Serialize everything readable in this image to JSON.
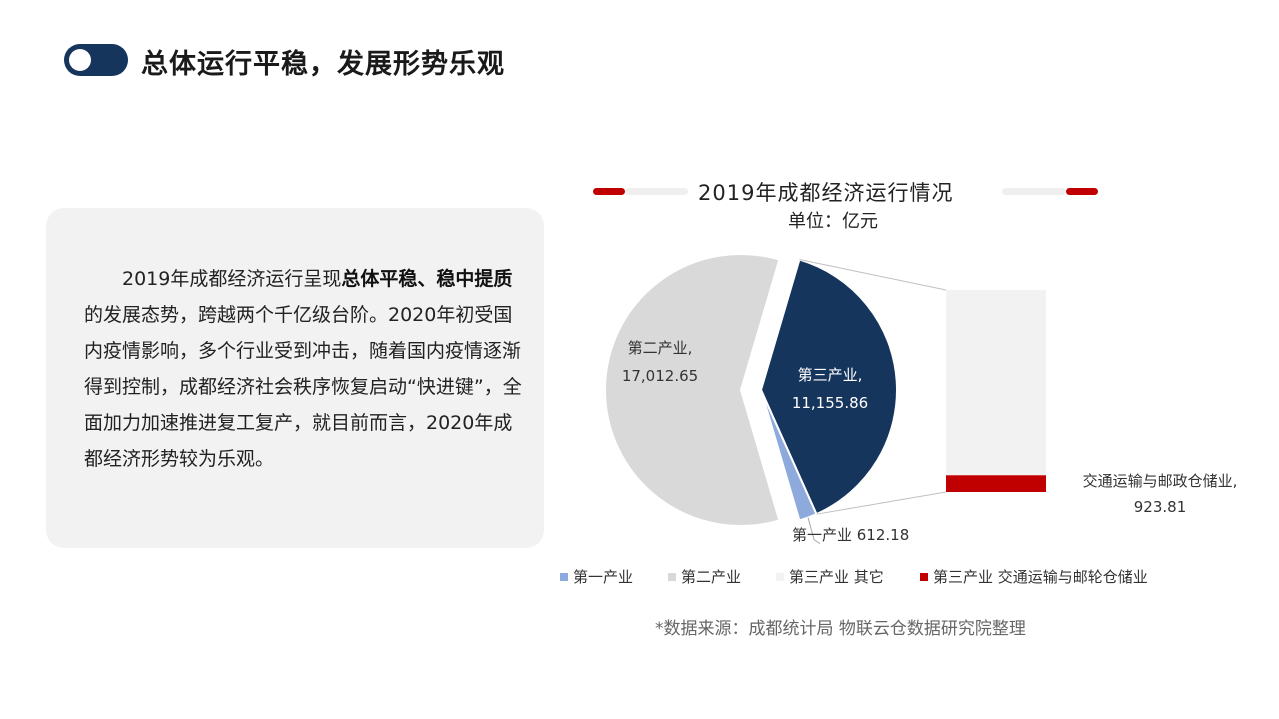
{
  "header": {
    "title": "总体运行平稳，发展形势乐观"
  },
  "text_card": {
    "p1": "2019年成都经济运行呈现",
    "b1": "总体平稳、稳中提质",
    "p2": "的发展态势，跨越两个千亿级台阶。2020年初受国内疫情影响，多个行业受到冲击，随着国内疫情逐渐得到控制，成都经济社会秩序恢复启动“快进键”，全面加力加速推进复工复产，就目前而言，2020年成都经济形势较为乐观。"
  },
  "chart_data": {
    "type": "pie",
    "title": "2019年成都经济运行情况",
    "subtitle": "单位：亿元",
    "slices": [
      {
        "name": "第一产业",
        "value": 612.18,
        "label": "第一产业 612.18",
        "color": "#8ea9db"
      },
      {
        "name": "第二产业",
        "value": 17012.65,
        "label_name": "第二产业,",
        "label_value": "17,012.65",
        "color": "#d9d9d9"
      },
      {
        "name": "第三产业",
        "value": 11155.86,
        "label_name": "第三产业,",
        "label_value": "11,155.86",
        "color": "#15355c"
      }
    ],
    "breakdown": {
      "of": "第三产业",
      "segments": [
        {
          "name": "第三产业 其它",
          "value": 10232.05,
          "color": "#f2f2f2"
        },
        {
          "name": "第三产业 交通运输与邮轮仓储业",
          "value": 923.81,
          "label_name": "交通运输与邮政仓储业,",
          "label_value": "923.81",
          "color": "#c00000"
        }
      ]
    },
    "legend": [
      {
        "label": "第一产业",
        "color": "#8ea9db"
      },
      {
        "label": "第二产业",
        "color": "#d9d9d9"
      },
      {
        "label": "第三产业 其它",
        "color": "#f2f2f2"
      },
      {
        "label": "第三产业 交通运输与邮轮仓储业",
        "color": "#c00000"
      }
    ],
    "legend_position": "bottom"
  },
  "source": "*数据来源：成都统计局 物联云仓数据研究院整理"
}
